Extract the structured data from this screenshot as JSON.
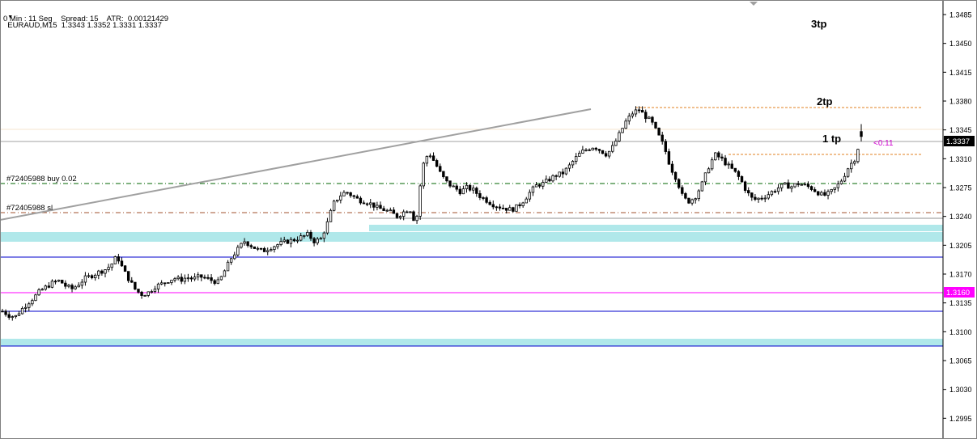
{
  "header": {
    "symbol_line": "EURAUD,M15  1.3343 1.3352 1.3331 1.3337",
    "info_line": "0 Min : 11 Seg    Spread: 15    ATR:  0.00121429"
  },
  "annotations": {
    "tp3": "3tp",
    "tp2": "2tp",
    "tp1": "1 tp",
    "countdown": "<0:11"
  },
  "orders": {
    "buy_label": "#72405988 buy 0.02",
    "sl_label": "#72405988 sl"
  },
  "price_axis": {
    "ticks": [
      "1.3485",
      "1.3450",
      "1.3415",
      "1.3380",
      "1.3345",
      "1.3310",
      "1.3275",
      "1.3240",
      "1.3205",
      "1.3170",
      "1.3135",
      "1.3100",
      "1.3065",
      "1.3030",
      "1.2995"
    ],
    "current_price": "1.3337",
    "magenta_level": "1.3160"
  },
  "colors": {
    "bid_label_bg": "#000000",
    "magenta": "#ff00ff",
    "zone_cyan": "#b0e8ea",
    "level_blue": "#0000cc",
    "order_green": "#006400",
    "sl_brown": "#a0522d",
    "tp_orange": "#e08020",
    "trendline_gray": "#a0a0a0"
  },
  "chart_data": {
    "type": "candlestick",
    "symbol": "EURAUD",
    "timeframe": "M15",
    "price_range": [
      1.299,
      1.3495
    ],
    "last_ohlc": {
      "open": 1.3343,
      "high": 1.3352,
      "low": 1.3331,
      "close": 1.3337
    },
    "close_path": [
      1.3125,
      1.312,
      1.3118,
      1.3127,
      1.3135,
      1.3142,
      1.315,
      1.3155,
      1.316,
      1.3162,
      1.3155,
      1.3152,
      1.3158,
      1.3165,
      1.3168,
      1.3172,
      1.3175,
      1.318,
      1.3192,
      1.3175,
      1.3162,
      1.315,
      1.3145,
      1.3148,
      1.3155,
      1.3158,
      1.3162,
      1.3165,
      1.3163,
      1.3166,
      1.3164,
      1.3167,
      1.3165,
      1.3162,
      1.316,
      1.3175,
      1.319,
      1.32,
      1.321,
      1.3205,
      1.32,
      1.3198,
      1.3202,
      1.3205,
      1.3208,
      1.321,
      1.3212,
      1.3215,
      1.3218,
      1.321,
      1.3212,
      1.323,
      1.3255,
      1.3265,
      1.327,
      1.3265,
      1.326,
      1.3258,
      1.3255,
      1.325,
      1.3248,
      1.3245,
      1.324,
      1.3245,
      1.325,
      1.323,
      1.33,
      1.3318,
      1.3305,
      1.329,
      1.328,
      1.3275,
      1.327,
      1.3275,
      1.3272,
      1.3265,
      1.326,
      1.3255,
      1.3252,
      1.325,
      1.3248,
      1.3252,
      1.326,
      1.327,
      1.3278,
      1.328,
      1.3285,
      1.329,
      1.3292,
      1.33,
      1.331,
      1.3318,
      1.3322,
      1.3325,
      1.332,
      1.3315,
      1.3325,
      1.334,
      1.3355,
      1.3365,
      1.337,
      1.3362,
      1.3355,
      1.334,
      1.3325,
      1.33,
      1.3285,
      1.3262,
      1.3258,
      1.3265,
      1.328,
      1.33,
      1.3315,
      1.331,
      1.3302,
      1.3295,
      1.3285,
      1.327,
      1.326,
      1.3262,
      1.3265,
      1.327,
      1.3275,
      1.3278,
      1.3276,
      1.328,
      1.3278,
      1.3275,
      1.327,
      1.3265,
      1.3268,
      1.3275,
      1.3285,
      1.33,
      1.331,
      1.3337
    ],
    "zones": [
      {
        "low": 1.3226,
        "high": 1.3236
      },
      {
        "low": 1.3236,
        "high": 1.3244
      },
      {
        "low": 1.3096,
        "high": 1.3104
      }
    ],
    "levels": [
      {
        "name": "tp2",
        "price": 1.338
      },
      {
        "name": "tp1",
        "price": 1.3322
      },
      {
        "name": "buy",
        "price": 1.329
      },
      {
        "name": "sl",
        "price": 1.3253
      },
      {
        "name": "blue_upper",
        "price": 1.3207
      },
      {
        "name": "magenta",
        "price": 1.316
      },
      {
        "name": "blue_lower",
        "price": 1.3139
      }
    ],
    "trendline": {
      "from": 1.3245,
      "to": 1.3377
    }
  }
}
